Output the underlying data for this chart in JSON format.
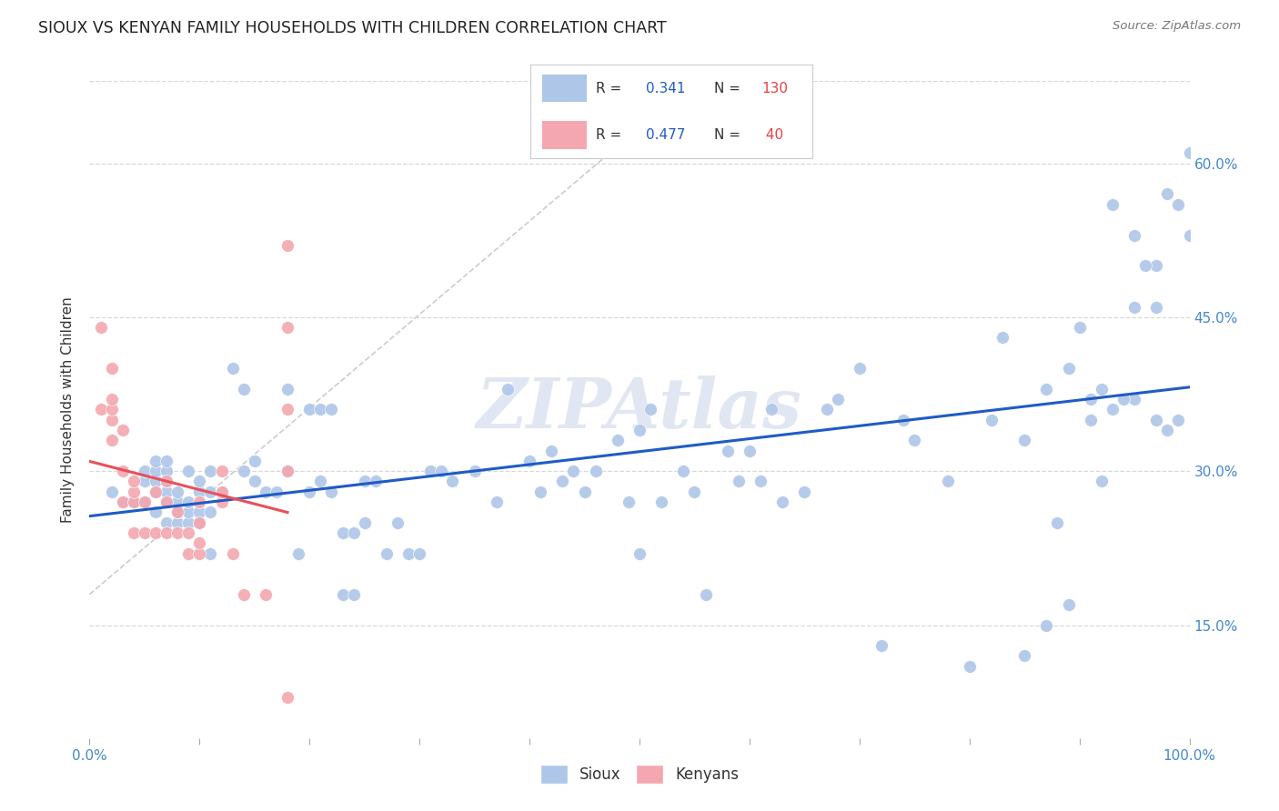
{
  "title": "SIOUX VS KENYAN FAMILY HOUSEHOLDS WITH CHILDREN CORRELATION CHART",
  "source": "Source: ZipAtlas.com",
  "ylabel": "Family Households with Children",
  "sioux_R": 0.341,
  "sioux_N": 130,
  "kenyan_R": 0.477,
  "kenyan_N": 40,
  "sioux_color": "#aec6e8",
  "kenyan_color": "#f4a7b0",
  "sioux_line_color": "#1f5bc4",
  "kenyan_line_color": "#e8505b",
  "ref_line_color": "#cccccc",
  "watermark_color": "#c8d4e8",
  "background_color": "#ffffff",
  "grid_color": "#d8d8d8",
  "tick_color": "#4488cc",
  "xlim": [
    0.0,
    1.0
  ],
  "ylim": [
    0.04,
    0.68
  ],
  "ytick_positions": [
    0.15,
    0.3,
    0.45,
    0.6
  ],
  "ytick_labels": [
    "15.0%",
    "30.0%",
    "45.0%",
    "60.0%"
  ],
  "sioux_x": [
    0.02,
    0.03,
    0.04,
    0.04,
    0.05,
    0.05,
    0.05,
    0.05,
    0.06,
    0.06,
    0.06,
    0.06,
    0.06,
    0.07,
    0.07,
    0.07,
    0.07,
    0.07,
    0.07,
    0.08,
    0.08,
    0.08,
    0.08,
    0.09,
    0.09,
    0.09,
    0.09,
    0.1,
    0.1,
    0.1,
    0.1,
    0.11,
    0.11,
    0.11,
    0.11,
    0.12,
    0.13,
    0.14,
    0.14,
    0.15,
    0.15,
    0.16,
    0.17,
    0.18,
    0.18,
    0.19,
    0.2,
    0.2,
    0.21,
    0.21,
    0.22,
    0.22,
    0.23,
    0.23,
    0.24,
    0.24,
    0.25,
    0.25,
    0.26,
    0.27,
    0.28,
    0.29,
    0.3,
    0.31,
    0.32,
    0.33,
    0.35,
    0.37,
    0.38,
    0.4,
    0.41,
    0.42,
    0.43,
    0.44,
    0.45,
    0.46,
    0.48,
    0.49,
    0.5,
    0.5,
    0.51,
    0.52,
    0.54,
    0.55,
    0.56,
    0.58,
    0.59,
    0.6,
    0.61,
    0.62,
    0.63,
    0.65,
    0.67,
    0.68,
    0.7,
    0.72,
    0.74,
    0.75,
    0.78,
    0.8,
    0.82,
    0.83,
    0.85,
    0.87,
    0.89,
    0.9,
    0.92,
    0.93,
    0.95,
    0.97,
    0.98,
    0.99,
    0.93,
    0.95,
    0.97,
    0.98,
    0.99,
    1.0,
    1.0,
    0.97,
    0.91,
    0.95,
    0.87,
    0.92,
    0.88,
    0.94,
    0.96,
    0.91,
    0.85,
    0.89
  ],
  "sioux_y": [
    0.28,
    0.27,
    0.27,
    0.27,
    0.27,
    0.27,
    0.29,
    0.3,
    0.26,
    0.28,
    0.29,
    0.3,
    0.31,
    0.25,
    0.27,
    0.28,
    0.29,
    0.3,
    0.31,
    0.25,
    0.26,
    0.27,
    0.28,
    0.25,
    0.26,
    0.27,
    0.3,
    0.25,
    0.26,
    0.28,
    0.29,
    0.22,
    0.26,
    0.28,
    0.3,
    0.28,
    0.4,
    0.38,
    0.3,
    0.29,
    0.31,
    0.28,
    0.28,
    0.38,
    0.3,
    0.22,
    0.28,
    0.36,
    0.29,
    0.36,
    0.28,
    0.36,
    0.18,
    0.24,
    0.18,
    0.24,
    0.29,
    0.25,
    0.29,
    0.22,
    0.25,
    0.22,
    0.22,
    0.3,
    0.3,
    0.29,
    0.3,
    0.27,
    0.38,
    0.31,
    0.28,
    0.32,
    0.29,
    0.3,
    0.28,
    0.3,
    0.33,
    0.27,
    0.22,
    0.34,
    0.36,
    0.27,
    0.3,
    0.28,
    0.18,
    0.32,
    0.29,
    0.32,
    0.29,
    0.36,
    0.27,
    0.28,
    0.36,
    0.37,
    0.4,
    0.13,
    0.35,
    0.33,
    0.29,
    0.11,
    0.35,
    0.43,
    0.33,
    0.38,
    0.4,
    0.44,
    0.38,
    0.36,
    0.37,
    0.46,
    0.34,
    0.35,
    0.56,
    0.53,
    0.5,
    0.57,
    0.56,
    0.61,
    0.53,
    0.35,
    0.37,
    0.46,
    0.15,
    0.29,
    0.25,
    0.37,
    0.5,
    0.35,
    0.12,
    0.17
  ],
  "kenyan_x": [
    0.01,
    0.01,
    0.02,
    0.02,
    0.02,
    0.02,
    0.02,
    0.03,
    0.03,
    0.03,
    0.04,
    0.04,
    0.04,
    0.04,
    0.05,
    0.05,
    0.06,
    0.06,
    0.07,
    0.07,
    0.07,
    0.08,
    0.08,
    0.09,
    0.09,
    0.1,
    0.1,
    0.1,
    0.1,
    0.12,
    0.12,
    0.12,
    0.13,
    0.14,
    0.16,
    0.18,
    0.18,
    0.18,
    0.18,
    0.18
  ],
  "kenyan_y": [
    0.44,
    0.36,
    0.33,
    0.35,
    0.36,
    0.37,
    0.4,
    0.27,
    0.3,
    0.34,
    0.24,
    0.27,
    0.28,
    0.29,
    0.24,
    0.27,
    0.24,
    0.28,
    0.24,
    0.27,
    0.29,
    0.24,
    0.26,
    0.22,
    0.24,
    0.22,
    0.23,
    0.25,
    0.27,
    0.27,
    0.28,
    0.3,
    0.22,
    0.18,
    0.18,
    0.08,
    0.3,
    0.36,
    0.44,
    0.52
  ]
}
